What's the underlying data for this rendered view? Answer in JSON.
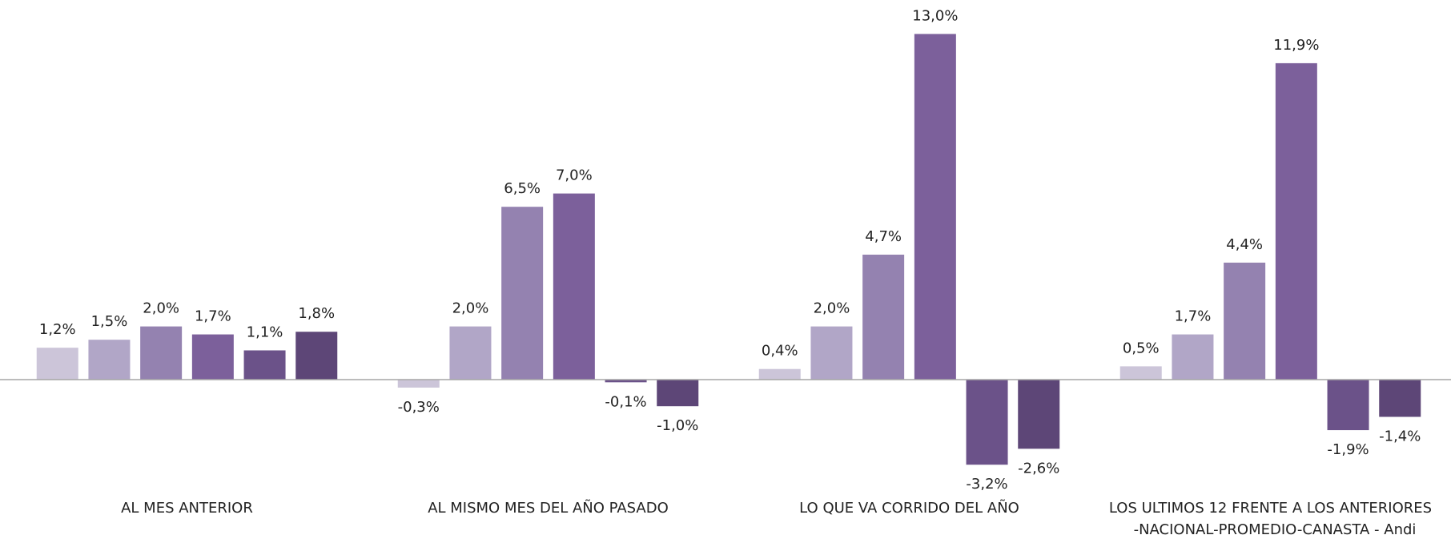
{
  "chart_data": {
    "type": "bar",
    "title": "-NACIONAL-PROMEDIO-CANASTA - Andi",
    "categories": [
      "AL MES ANTERIOR",
      "AL MISMO MES DEL AÑO PASADO",
      "LO QUE VA CORRIDO DEL AÑO",
      "LOS ULTIMOS 12 FRENTE A LOS ANTERIORES"
    ],
    "series": [
      {
        "color": "#ccc5d9",
        "values": [
          1.2,
          -0.3,
          0.4,
          0.5
        ],
        "value_labels": [
          "1,2%",
          "-0,3%",
          "0,4%",
          "0,5%"
        ]
      },
      {
        "color": "#b1a6c7",
        "values": [
          1.5,
          2.0,
          2.0,
          1.7
        ],
        "value_labels": [
          "1,5%",
          "2,0%",
          "2,0%",
          "1,7%"
        ]
      },
      {
        "color": "#9482b0",
        "values": [
          2.0,
          6.5,
          4.7,
          4.4
        ],
        "value_labels": [
          "2,0%",
          "6,5%",
          "4,7%",
          "4,4%"
        ]
      },
      {
        "color": "#7c609b",
        "values": [
          1.7,
          7.0,
          13.0,
          11.9
        ],
        "value_labels": [
          "1,7%",
          "7,0%",
          "13,0%",
          "11,9%"
        ]
      },
      {
        "color": "#6b5289",
        "values": [
          1.1,
          -0.1,
          -3.2,
          -1.9
        ],
        "value_labels": [
          "1,1%",
          "-0,1%",
          "-3,2%",
          "-1,9%"
        ]
      },
      {
        "color": "#5d4677",
        "values": [
          1.8,
          -1.0,
          -2.6,
          -1.4
        ],
        "value_labels": [
          "1,8%",
          "-1,0%",
          "-2,6%",
          "-1,4%"
        ]
      }
    ],
    "ylim": [
      -4,
      14
    ]
  }
}
